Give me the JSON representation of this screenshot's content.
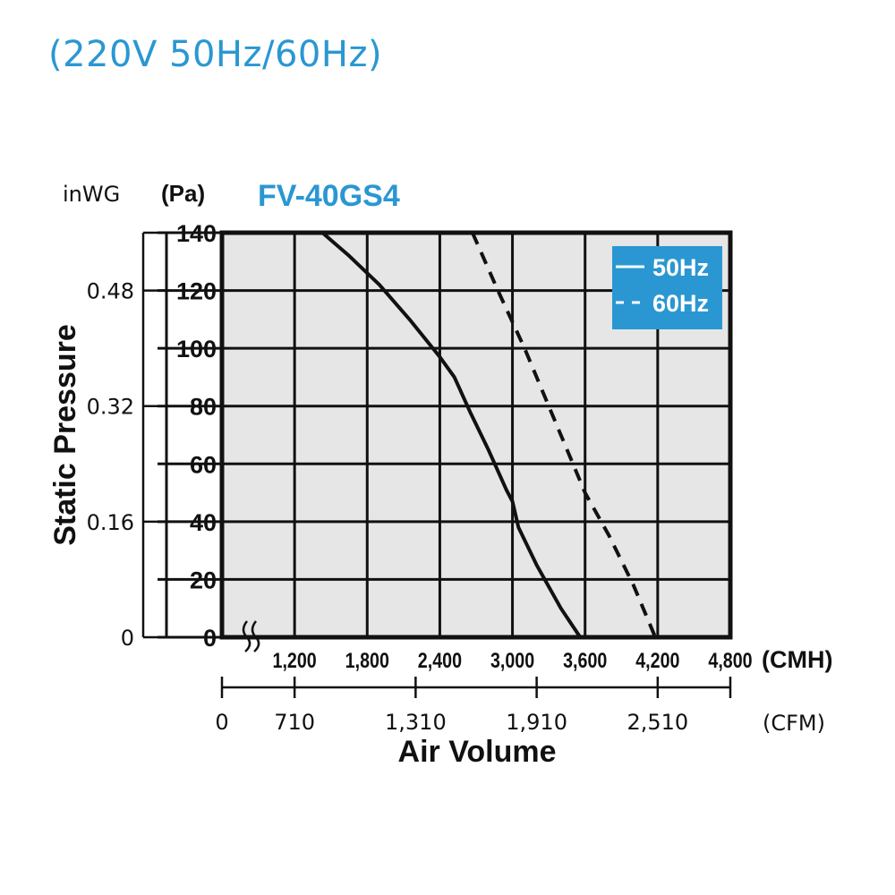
{
  "header": {
    "title": "(220V 50Hz/60Hz)"
  },
  "colors": {
    "accent": "#2a97d2",
    "plot_bg": "#e6e6e6",
    "ink": "#111111"
  },
  "chart_data": {
    "type": "line",
    "title": "FV-40GS4",
    "ylabel": "Static Pressure",
    "xlabel": "Air Volume",
    "y_unit_primary": "(Pa)",
    "y_unit_secondary": "inWG",
    "x_unit_primary": "(CMH)",
    "x_unit_secondary": "(CFM)",
    "xlim": [
      600,
      4800
    ],
    "ylim": [
      0,
      140
    ],
    "x_axis_break": true,
    "grid": true,
    "legend_position": "top-right",
    "y_ticks_pa": [
      {
        "value": 0,
        "label": "0"
      },
      {
        "value": 20,
        "label": "20"
      },
      {
        "value": 40,
        "label": "40"
      },
      {
        "value": 60,
        "label": "60"
      },
      {
        "value": 80,
        "label": "80"
      },
      {
        "value": 100,
        "label": "100"
      },
      {
        "value": 120,
        "label": "120"
      },
      {
        "value": 140,
        "label": "140"
      }
    ],
    "y_ticks_inwg": [
      {
        "value": 0,
        "label": "0"
      },
      {
        "value": 40,
        "label": "0.16"
      },
      {
        "value": 80,
        "label": "0.32"
      },
      {
        "value": 120,
        "label": "0.48"
      }
    ],
    "x_ticks_cmh": [
      {
        "value": 1200,
        "label": "1,200"
      },
      {
        "value": 1800,
        "label": "1,800"
      },
      {
        "value": 2400,
        "label": "2,400"
      },
      {
        "value": 3000,
        "label": "3,000"
      },
      {
        "value": 3600,
        "label": "3,600"
      },
      {
        "value": 4200,
        "label": "4,200"
      },
      {
        "value": 4800,
        "label": "4,800"
      }
    ],
    "x_ticks_cfm": [
      {
        "value": 600,
        "label": "0"
      },
      {
        "value": 1200,
        "label": "710"
      },
      {
        "value": 2200,
        "label": "1,310"
      },
      {
        "value": 3200,
        "label": "1,910"
      },
      {
        "value": 4200,
        "label": "2,510"
      }
    ],
    "series": [
      {
        "name": "50Hz",
        "style": "solid",
        "x": [
          1430,
          1650,
          1900,
          2150,
          2400,
          2520,
          2650,
          2800,
          2950,
          3000,
          3050,
          3200,
          3400,
          3560
        ],
        "y": [
          140,
          132,
          122,
          110,
          97,
          90,
          78,
          65,
          51,
          47,
          38,
          25,
          10,
          0
        ]
      },
      {
        "name": "60Hz",
        "style": "dashed",
        "x": [
          2670,
          2880,
          3100,
          3300,
          3500,
          3600,
          3800,
          4000,
          4180
        ],
        "y": [
          140,
          120,
          100,
          80,
          60,
          50,
          35,
          18,
          0
        ]
      }
    ]
  }
}
